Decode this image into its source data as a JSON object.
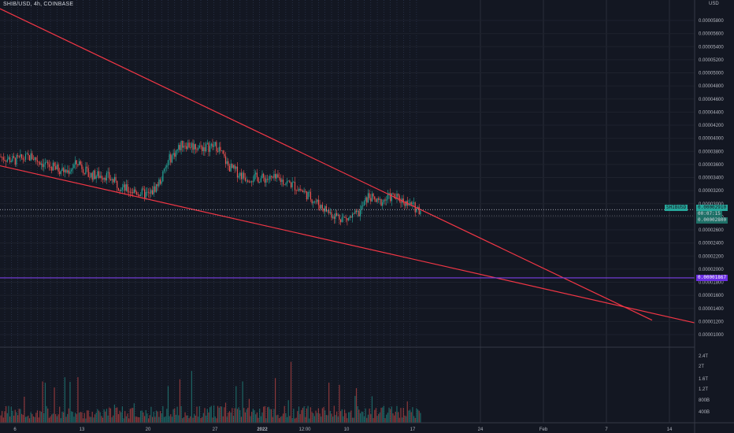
{
  "header": {
    "symbol_title": "SHIB/USD, 4h, COINBASE",
    "currency": "USD"
  },
  "colors": {
    "background": "#131722",
    "up": "#26a69a",
    "down": "#ef5350",
    "trendline": "#f23645",
    "support": "#7b3fe4",
    "grid": "#2a2e39",
    "axis_text": "#b2b5be"
  },
  "chart_data": [
    {
      "type": "candlestick",
      "title": "",
      "ylabel": "USD",
      "x_ticks": [
        "6",
        "13",
        "20",
        "27",
        "2022",
        "12:00",
        "10",
        "17",
        "24",
        "Feb",
        "7",
        "14"
      ],
      "y_ticks": [
        "0.00005800",
        "0.00005600",
        "0.00005400",
        "0.00005200",
        "0.00005000",
        "0.00004800",
        "0.00004600",
        "0.00004400",
        "0.00004200",
        "0.00004000",
        "0.00003800",
        "0.00003600",
        "0.00003400",
        "0.00003200",
        "0.00003000",
        "0.00002800",
        "0.00002600",
        "0.00002400",
        "0.00002200",
        "0.00002000",
        "0.00001800",
        "0.00001600",
        "0.00001400",
        "0.00001200",
        "0.00001000"
      ],
      "ylim": [
        8e-06,
        6e-05
      ],
      "price_path": [
        [
          0,
          3.72e-05
        ],
        [
          18,
          3.66e-05
        ],
        [
          40,
          3.72e-05
        ],
        [
          60,
          3.58e-05
        ],
        [
          85,
          3.49e-05
        ],
        [
          100,
          3.64e-05
        ],
        [
          112,
          3.44e-05
        ],
        [
          135,
          3.43e-05
        ],
        [
          155,
          3.24e-05
        ],
        [
          170,
          3.19e-05
        ],
        [
          190,
          3.13e-05
        ],
        [
          205,
          3.38e-05
        ],
        [
          215,
          3.68e-05
        ],
        [
          232,
          3.92e-05
        ],
        [
          255,
          3.86e-05
        ],
        [
          276,
          3.88e-05
        ],
        [
          290,
          3.57e-05
        ],
        [
          310,
          3.41e-05
        ],
        [
          330,
          3.39e-05
        ],
        [
          355,
          3.37e-05
        ],
        [
          372,
          3.29e-05
        ],
        [
          390,
          3.14e-05
        ],
        [
          405,
          2.99e-05
        ],
        [
          420,
          2.85e-05
        ],
        [
          440,
          2.76e-05
        ],
        [
          455,
          2.84e-05
        ],
        [
          468,
          3.12e-05
        ],
        [
          480,
          3.01e-05
        ],
        [
          497,
          3.11e-05
        ],
        [
          510,
          3.06e-05
        ],
        [
          522,
          2.97e-05
        ],
        [
          535,
          2.9e-05
        ]
      ],
      "annotations": {
        "last_price": "0.00002910",
        "last_price_sub": "00:07:15",
        "price_label_2": "0.00002800",
        "support_price": "0.00001867",
        "symbol_tag": "SHIBUSD"
      },
      "trendlines": [
        {
          "name": "upper",
          "points": [
            [
              0,
              5.98e-05
            ],
            [
              828,
              1.22e-05
            ]
          ]
        },
        {
          "name": "lower",
          "points": [
            [
              0,
              3.58e-05
            ],
            [
              882,
              1.18e-05
            ]
          ]
        }
      ],
      "horizontal_lines": [
        {
          "name": "support",
          "y": 1.867e-05,
          "style": "solid"
        },
        {
          "name": "last-price",
          "y": 2.91e-05,
          "style": "dotted"
        }
      ],
      "grid": true
    },
    {
      "type": "bar",
      "title": "Volume",
      "y_ticks": [
        "2.4T",
        "2T",
        "1.6T",
        "1.2T",
        "800B",
        "400B"
      ],
      "ylim": [
        0,
        2.6
      ]
    }
  ]
}
